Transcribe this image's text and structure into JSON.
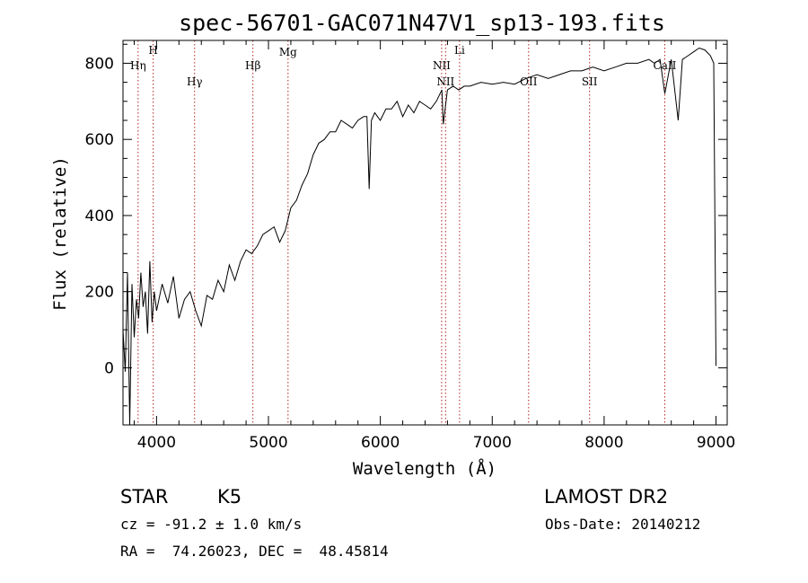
{
  "chart_data": {
    "type": "line",
    "title": "spec-56701-GAC071N47V1_sp13-193.fits",
    "xlabel": "Wavelength (Å)",
    "ylabel": "Flux (relative)",
    "xlim": [
      3700,
      9100
    ],
    "ylim": [
      -150,
      860
    ],
    "x_ticks": [
      4000,
      5000,
      6000,
      7000,
      8000,
      9000
    ],
    "y_ticks": [
      0,
      200,
      400,
      600,
      800
    ],
    "grid": false,
    "spectral_lines": [
      {
        "label": "Hη",
        "wavelength": 3835
      },
      {
        "label": "H",
        "wavelength": 3970
      },
      {
        "label": "Hγ",
        "wavelength": 4340
      },
      {
        "label": "Hβ",
        "wavelength": 4861
      },
      {
        "label": "Mg",
        "wavelength": 5175
      },
      {
        "label": "NII",
        "wavelength": 6548
      },
      {
        "label": "NII",
        "wavelength": 6583
      },
      {
        "label": "Li",
        "wavelength": 6708
      },
      {
        "label": "OII",
        "wavelength": 7325
      },
      {
        "label": "SII",
        "wavelength": 7870
      },
      {
        "label": "CaII",
        "wavelength": 8542
      }
    ],
    "series": [
      {
        "x": [
          3700,
          3720,
          3740,
          3760,
          3780,
          3800,
          3820,
          3840,
          3860,
          3880,
          3900,
          3920,
          3940,
          3960,
          3980,
          4000,
          4050,
          4100,
          4150,
          4200,
          4250,
          4300,
          4350,
          4400,
          4450,
          4500,
          4550,
          4600,
          4650,
          4700,
          4750,
          4800,
          4850,
          4900,
          4950,
          5000,
          5050,
          5100,
          5150,
          5200,
          5250,
          5300,
          5350,
          5400,
          5450,
          5500,
          5550,
          5600,
          5650,
          5700,
          5750,
          5800,
          5850,
          5880,
          5900,
          5920,
          5950,
          6000,
          6050,
          6100,
          6150,
          6200,
          6250,
          6300,
          6350,
          6400,
          6450,
          6500,
          6550,
          6563,
          6600,
          6650,
          6700,
          6750,
          6800,
          6900,
          7000,
          7100,
          7200,
          7300,
          7400,
          7500,
          7600,
          7700,
          7800,
          7900,
          8000,
          8100,
          8200,
          8300,
          8400,
          8450,
          8500,
          8542,
          8600,
          8662,
          8700,
          8750,
          8800,
          8850,
          8900,
          8950,
          8980,
          9000
        ],
        "y": [
          100,
          -10,
          250,
          -150,
          220,
          80,
          180,
          130,
          250,
          160,
          200,
          90,
          280,
          120,
          200,
          150,
          220,
          170,
          240,
          130,
          180,
          200,
          150,
          110,
          190,
          180,
          230,
          200,
          270,
          230,
          280,
          310,
          300,
          320,
          350,
          360,
          370,
          330,
          360,
          420,
          440,
          480,
          510,
          560,
          590,
          600,
          620,
          620,
          650,
          640,
          630,
          650,
          660,
          660,
          470,
          650,
          670,
          650,
          680,
          680,
          700,
          660,
          690,
          670,
          700,
          690,
          680,
          700,
          730,
          640,
          730,
          740,
          730,
          740,
          740,
          750,
          745,
          750,
          745,
          760,
          770,
          760,
          770,
          780,
          780,
          790,
          780,
          790,
          800,
          800,
          810,
          800,
          810,
          720,
          810,
          650,
          810,
          820,
          830,
          840,
          835,
          820,
          800,
          5
        ]
      }
    ]
  },
  "info": {
    "class_label": "STAR",
    "subclass": "K5",
    "survey": "LAMOST DR2",
    "cz": "cz = -91.2 ± 1.0 km/s",
    "obs_date": "Obs-Date: 20140212",
    "coords": "RA =  74.26023, DEC =  48.45814"
  }
}
